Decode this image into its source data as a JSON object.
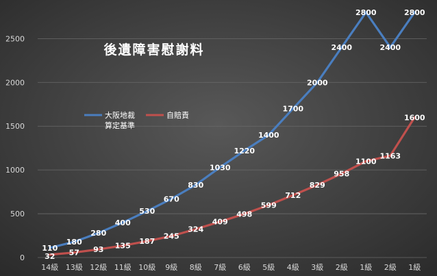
{
  "chart_data": {
    "type": "line",
    "title": "後遺障害慰謝料",
    "xlabel": "",
    "ylabel": "",
    "ylim": [
      0,
      2800
    ],
    "yticks": [
      0,
      500,
      1000,
      1500,
      2000,
      2500
    ],
    "grid": true,
    "legend_position": "left-middle",
    "categories": [
      "14級",
      "13級",
      "12級",
      "11級",
      "10級",
      "9級",
      "8級",
      "7級",
      "6級",
      "5級",
      "4級",
      "3級",
      "2級",
      "1級",
      "2級",
      "1級"
    ],
    "series": [
      {
        "name": "大阪地裁算定基準",
        "color": "#4a7ebf",
        "values": [
          110,
          180,
          280,
          400,
          530,
          670,
          830,
          1030,
          1220,
          1400,
          1700,
          2000,
          2400,
          2800,
          2400,
          2800
        ],
        "labels": [
          "110",
          "180",
          "280",
          "400",
          "530",
          "670",
          "830",
          "1030",
          "1220",
          "1400",
          "1700",
          "2000",
          "2400",
          "2800",
          "2400",
          "2800"
        ]
      },
      {
        "name": "自賠責",
        "color": "#c0504d",
        "values": [
          32,
          57,
          93,
          135,
          187,
          245,
          324,
          409,
          498,
          599,
          712,
          829,
          958,
          1100,
          1163,
          1600
        ],
        "labels": [
          "32",
          "57",
          "93",
          "135",
          "187",
          "245",
          "324",
          "409",
          "498",
          "599",
          "712",
          "829",
          "958",
          "1100",
          "1163",
          "1600"
        ]
      }
    ],
    "legend": {
      "items": [
        {
          "line1": "大阪地裁",
          "line2": "算定基準",
          "color": "#4a7ebf"
        },
        {
          "line1": "自賠責",
          "line2": "",
          "color": "#c0504d"
        }
      ]
    },
    "colors": {
      "text": "#ffffff",
      "axis_text": "#d9d9d9",
      "grid": "#6a6a6a"
    }
  }
}
